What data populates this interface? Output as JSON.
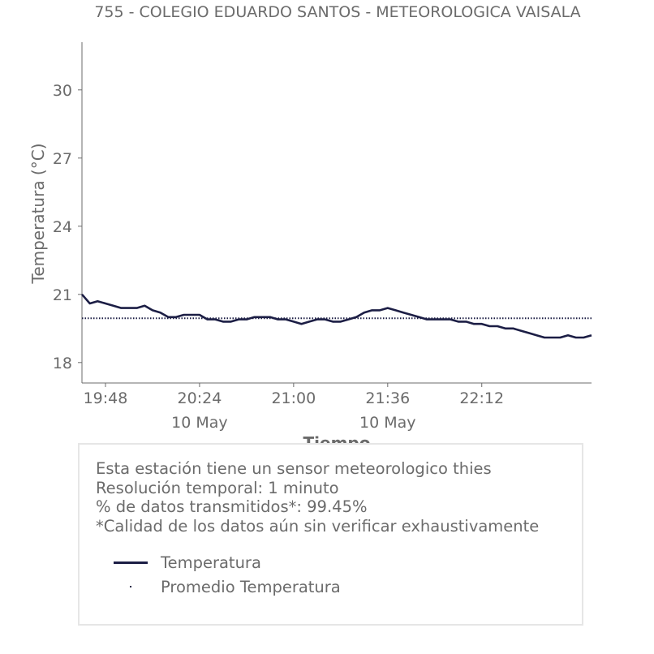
{
  "chart_data": {
    "type": "line",
    "title": "755 - COLEGIO EDUARDO SANTOS - METEOROLOGICA VAISALA",
    "xlabel": "Tiempo",
    "ylabel": "Temperatura (°C)",
    "ylim": [
      17.1,
      32.1
    ],
    "xlim": [
      "19:39",
      "22:54"
    ],
    "y_ticks": [
      "18",
      "21",
      "24",
      "27",
      "30"
    ],
    "x_ticks": [
      {
        "time": "19:48",
        "date": ""
      },
      {
        "time": "20:24",
        "date": "10 May"
      },
      {
        "time": "21:00",
        "date": ""
      },
      {
        "time": "21:36",
        "date": "10 May"
      },
      {
        "time": "22:12",
        "date": ""
      }
    ],
    "grid": false,
    "series": [
      {
        "name": "Temperatura",
        "color": "#1c1e45",
        "style": "solid",
        "x": [
          "19:39",
          "19:42",
          "19:45",
          "19:48",
          "19:51",
          "19:54",
          "19:57",
          "20:00",
          "20:03",
          "20:06",
          "20:09",
          "20:12",
          "20:15",
          "20:18",
          "20:21",
          "20:24",
          "20:27",
          "20:30",
          "20:33",
          "20:36",
          "20:39",
          "20:42",
          "20:45",
          "20:48",
          "20:51",
          "20:54",
          "20:57",
          "21:00",
          "21:03",
          "21:06",
          "21:09",
          "21:12",
          "21:15",
          "21:18",
          "21:21",
          "21:24",
          "21:27",
          "21:30",
          "21:33",
          "21:36",
          "21:39",
          "21:42",
          "21:45",
          "21:48",
          "21:51",
          "21:54",
          "21:57",
          "22:00",
          "22:03",
          "22:06",
          "22:09",
          "22:12",
          "22:15",
          "22:18",
          "22:21",
          "22:24",
          "22:27",
          "22:30",
          "22:33",
          "22:36",
          "22:39",
          "22:42",
          "22:45",
          "22:48",
          "22:51",
          "22:54"
        ],
        "y": [
          21.0,
          20.6,
          20.7,
          20.6,
          20.5,
          20.4,
          20.4,
          20.4,
          20.5,
          20.3,
          20.2,
          20.0,
          20.0,
          20.1,
          20.1,
          20.1,
          19.9,
          19.9,
          19.8,
          19.8,
          19.9,
          19.9,
          20.0,
          20.0,
          20.0,
          19.9,
          19.9,
          19.8,
          19.7,
          19.8,
          19.9,
          19.9,
          19.8,
          19.8,
          19.9,
          20.0,
          20.2,
          20.3,
          20.3,
          20.4,
          20.3,
          20.2,
          20.1,
          20.0,
          19.9,
          19.9,
          19.9,
          19.9,
          19.8,
          19.8,
          19.7,
          19.7,
          19.6,
          19.6,
          19.5,
          19.5,
          19.4,
          19.3,
          19.2,
          19.1,
          19.1,
          19.1,
          19.2,
          19.1,
          19.1,
          19.2
        ]
      },
      {
        "name": "Promedio Temperatura",
        "color": "#1c1e45",
        "style": "dotted",
        "x": [
          "19:39",
          "22:54"
        ],
        "y": [
          19.95,
          19.95
        ]
      }
    ]
  },
  "info": {
    "lines": [
      "Esta estación tiene un sensor meteorologico thies",
      "Resolución temporal: 1 minuto",
      "% de datos transmitidos*: 99.45%",
      "*Calidad de los datos aún sin verificar exhaustivamente"
    ]
  },
  "legend": {
    "items": [
      "Temperatura",
      "Promedio Temperatura"
    ]
  }
}
